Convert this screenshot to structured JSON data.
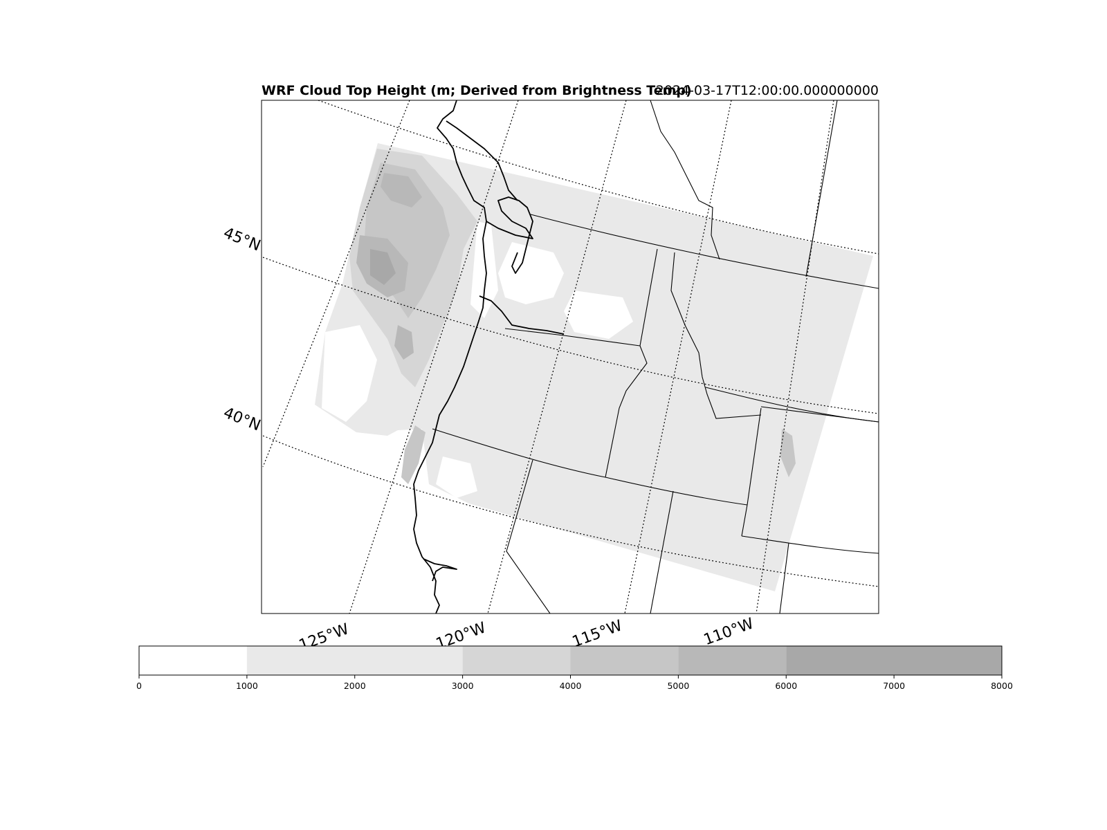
{
  "title": {
    "left": "WRF Cloud Top Height (m; Derived from Brightness Temp)",
    "right": "2024-03-17T12:00:00.000000000"
  },
  "map": {
    "latitude_labels": [
      "45°N",
      "40°N"
    ],
    "longitude_labels": [
      "125°W",
      "120°W",
      "115°W",
      "110°W"
    ],
    "fill_colors": {
      "level_0": "#ffffff",
      "level_1": "#e9e9e9",
      "level_2": "#d6d6d6",
      "level_3": "#c6c6c6",
      "level_4": "#b8b8b8",
      "level_5": "#a8a8a8"
    }
  },
  "colorbar": {
    "ticks": [
      "0",
      "1000",
      "2000",
      "3000",
      "4000",
      "5000",
      "6000",
      "7000",
      "8000"
    ],
    "bins": [
      {
        "from": 0,
        "to": 1000,
        "color": "#ffffff"
      },
      {
        "from": 1000,
        "to": 3000,
        "color": "#e9e9e9"
      },
      {
        "from": 3000,
        "to": 4000,
        "color": "#d6d6d6"
      },
      {
        "from": 4000,
        "to": 5000,
        "color": "#c6c6c6"
      },
      {
        "from": 5000,
        "to": 6000,
        "color": "#b8b8b8"
      },
      {
        "from": 6000,
        "to": 8000,
        "color": "#a8a8a8"
      }
    ],
    "range": [
      0,
      8000
    ]
  }
}
